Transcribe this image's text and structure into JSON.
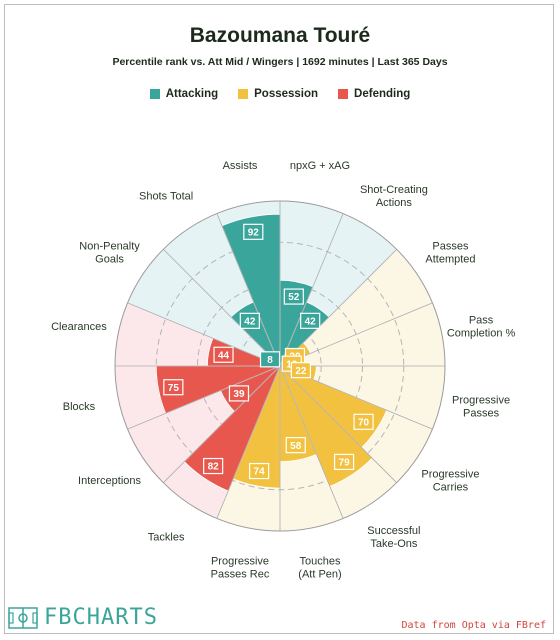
{
  "header": {
    "title": "Bazoumana Touré",
    "subtitle": "Percentile rank vs. Att Mid / Wingers | 1692 minutes | Last 365 Days"
  },
  "legend": [
    {
      "label": "Attacking",
      "color": "#3aa59a"
    },
    {
      "label": "Possession",
      "color": "#f2c13f"
    },
    {
      "label": "Defending",
      "color": "#e8574d"
    }
  ],
  "chart_data": {
    "type": "polar_bar",
    "range": [
      0,
      100
    ],
    "groups": {
      "Attacking": {
        "color": "#3aa59a",
        "bg": "#e5f3f5"
      },
      "Possession": {
        "color": "#f2c13f",
        "bg": "#fcf6e4"
      },
      "Defending": {
        "color": "#e8574d",
        "bg": "#fce8ea"
      }
    },
    "metrics": [
      {
        "label": "npxG + xAG",
        "value": 52,
        "group": "Attacking"
      },
      {
        "label": "Shot-Creating Actions",
        "value": 42,
        "group": "Attacking"
      },
      {
        "label": "Passes Attempted",
        "value": 20,
        "group": "Possession"
      },
      {
        "label": "Pass Completion %",
        "value": 13,
        "group": "Possession"
      },
      {
        "label": "Progressive Passes",
        "value": 22,
        "group": "Possession"
      },
      {
        "label": "Progressive Carries",
        "value": 70,
        "group": "Possession"
      },
      {
        "label": "Successful Take-Ons",
        "value": 79,
        "group": "Possession"
      },
      {
        "label": "Touches (Att Pen)",
        "value": 58,
        "group": "Possession"
      },
      {
        "label": "Progressive Passes Rec",
        "value": 74,
        "group": "Possession"
      },
      {
        "label": "Tackles",
        "value": 82,
        "group": "Defending"
      },
      {
        "label": "Interceptions",
        "value": 39,
        "group": "Defending"
      },
      {
        "label": "Blocks",
        "value": 75,
        "group": "Defending"
      },
      {
        "label": "Clearances",
        "value": 44,
        "group": "Defending"
      },
      {
        "label": "Non-Penalty Goals",
        "value": 8,
        "group": "Attacking"
      },
      {
        "label": "Shots Total",
        "value": 42,
        "group": "Attacking"
      },
      {
        "label": "Assists",
        "value": 92,
        "group": "Attacking"
      }
    ]
  },
  "footer": {
    "logo": "FBCHARTS",
    "credit": "Data from Opta via FBref"
  }
}
